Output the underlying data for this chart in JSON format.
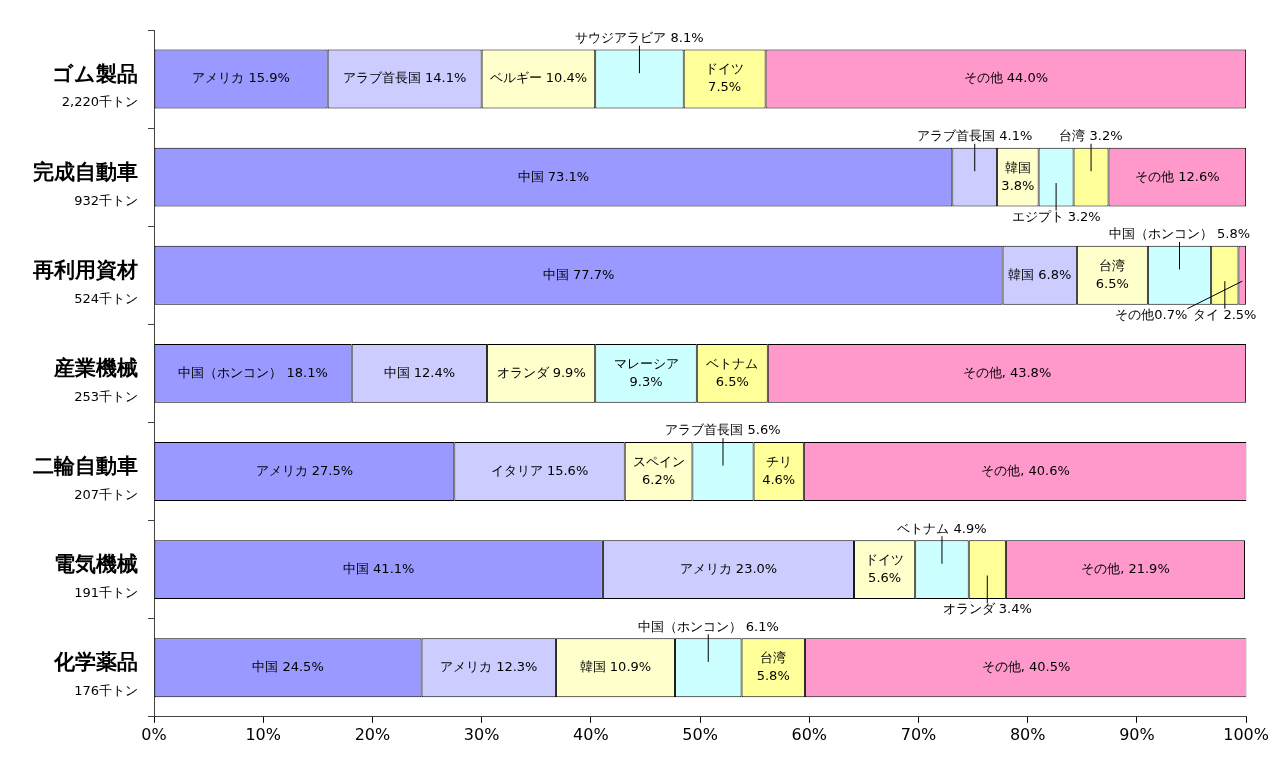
{
  "chart_data": {
    "type": "bar",
    "orientation": "horizontal",
    "stacked": true,
    "grid": false,
    "legend": false,
    "categories": [
      "ゴム製品\n2,220千トン",
      "完成自動車\n932千トン",
      "再利用資材\n524千トン",
      "産業機械\n253千トン",
      "二輪自動車\n207千トン",
      "電気機械\n191千トン",
      "化学薬品\n176千トン"
    ],
    "xlim": [
      0,
      100
    ],
    "xticks": [
      {
        "value": 0,
        "label": "0%"
      },
      {
        "value": 10,
        "label": "10%"
      },
      {
        "value": 20,
        "label": "20%"
      },
      {
        "value": 30,
        "label": "30%"
      },
      {
        "value": 40,
        "label": "40%"
      },
      {
        "value": 50,
        "label": "50%"
      },
      {
        "value": 60,
        "label": "60%"
      },
      {
        "value": 70,
        "label": "70%"
      },
      {
        "value": 80,
        "label": "80%"
      },
      {
        "value": 90,
        "label": "90%"
      },
      {
        "value": 100,
        "label": "100%"
      }
    ],
    "series": [
      {
        "color": "#9999ff",
        "values": [
          15.9,
          73.1,
          77.7,
          18.1,
          27.5,
          41.1,
          24.5
        ],
        "value_labels": [
          "アメリカ 15.9%",
          "中国 73.1%",
          "中国 77.7%",
          "中国（ホンコン） 18.1%",
          "アメリカ 27.5%",
          "中国 41.1%",
          "中国 24.5%"
        ]
      },
      {
        "color": "#ccccff",
        "values": [
          14.1,
          4.1,
          6.8,
          12.4,
          15.6,
          23.0,
          12.3
        ],
        "value_labels": [
          "アラブ首長国 14.1%",
          "アラブ首長国 4.1%",
          "韓国 6.8%",
          "中国 12.4%",
          "イタリア 15.6%",
          "アメリカ 23.0%",
          "アメリカ 12.3%"
        ]
      },
      {
        "color": "#ffffcc",
        "values": [
          10.4,
          3.8,
          6.5,
          9.9,
          6.2,
          5.6,
          10.9
        ],
        "value_labels": [
          "ベルギー 10.4%",
          "韓国 3.8%",
          "台湾 6.5%",
          "オランダ 9.9%",
          "スペイン 6.2%",
          "ドイツ 5.6%",
          "韓国 10.9%"
        ]
      },
      {
        "color": "#ccffff",
        "values": [
          8.1,
          3.2,
          5.8,
          9.3,
          5.6,
          4.9,
          6.1
        ],
        "value_labels": [
          "サウジアラビア 8.1%",
          "エジプト 3.2%",
          "中国（ホンコン） 5.8%",
          "マレーシア 9.3%",
          "アラブ首長国 5.6%",
          "ベトナム 4.9%",
          "中国（ホンコン） 6.1%"
        ]
      },
      {
        "color": "#ffff99",
        "values": [
          7.5,
          3.2,
          2.5,
          6.5,
          4.6,
          3.4,
          5.8
        ],
        "value_labels": [
          "ドイツ 7.5%",
          "台湾 3.2%",
          "タイ 2.5%",
          "ベトナム 6.5%",
          "チリ 4.6%",
          "オランダ 3.4%",
          "台湾 5.8%"
        ]
      },
      {
        "color": "#ff99cc",
        "values": [
          44.0,
          12.6,
          0.7,
          43.8,
          40.6,
          21.9,
          40.5
        ],
        "value_labels": [
          "その他 44.0%",
          "その他 12.6%",
          "その他0.7%",
          "その他, 43.8%",
          "その他, 40.6%",
          "その他, 21.9%",
          "その他, 40.5%"
        ]
      }
    ]
  }
}
